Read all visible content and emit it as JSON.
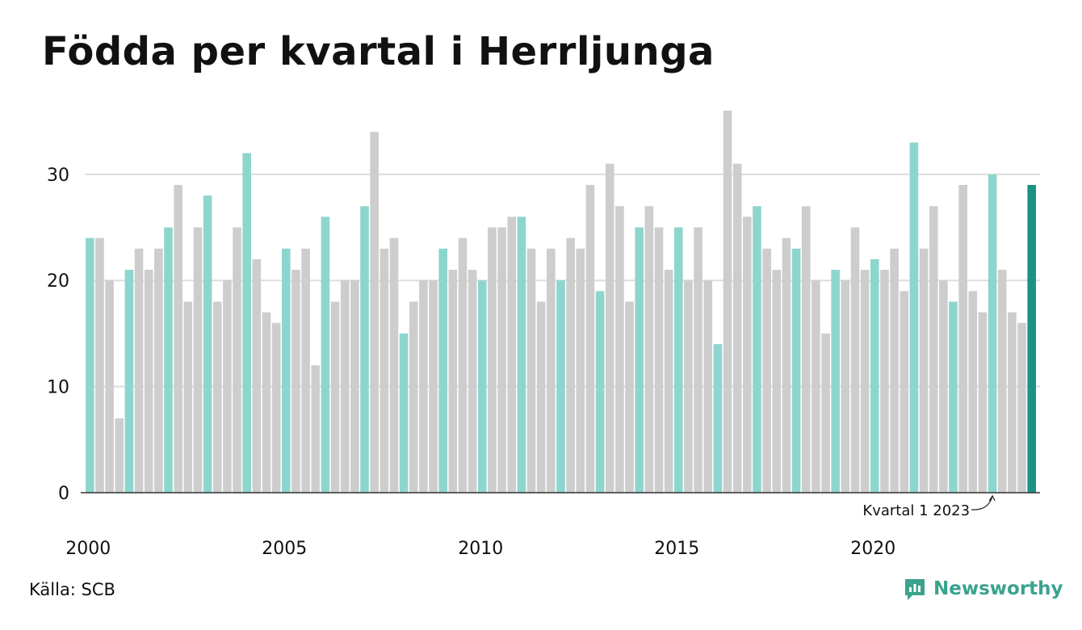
{
  "title": "Födda per kvartal i Herrljunga",
  "source": "Källa: SCB",
  "brand": "Newsworthy",
  "colors": {
    "q1": "#8dd6cd",
    "other": "#cdcdcd",
    "latest": "#1c9287",
    "grid": "#dddddd",
    "axis": "#333333",
    "brand": "#3aa28f"
  },
  "chart_data": {
    "type": "bar",
    "title": "Födda per kvartal i Herrljunga",
    "xlabel": "",
    "ylabel": "",
    "ylim": [
      0,
      36
    ],
    "yticks": [
      0,
      10,
      20,
      30
    ],
    "xticks": [
      "2000",
      "2005",
      "2010",
      "2015",
      "2020"
    ],
    "grid": true,
    "highlight_rule": "Kvartal 1 bars highlighted; latest bar emphasized",
    "annotation": {
      "text": "Kvartal 1 2023",
      "target": "2023 K1"
    },
    "categories": [
      "2000 K1",
      "2000 K2",
      "2000 K3",
      "2000 K4",
      "2001 K1",
      "2001 K2",
      "2001 K3",
      "2001 K4",
      "2002 K1",
      "2002 K2",
      "2002 K3",
      "2002 K4",
      "2003 K1",
      "2003 K2",
      "2003 K3",
      "2003 K4",
      "2004 K1",
      "2004 K2",
      "2004 K3",
      "2004 K4",
      "2005 K1",
      "2005 K2",
      "2005 K3",
      "2005 K4",
      "2006 K1",
      "2006 K2",
      "2006 K3",
      "2006 K4",
      "2007 K1",
      "2007 K2",
      "2007 K3",
      "2007 K4",
      "2008 K1",
      "2008 K2",
      "2008 K3",
      "2008 K4",
      "2009 K1",
      "2009 K2",
      "2009 K3",
      "2009 K4",
      "2010 K1",
      "2010 K2",
      "2010 K3",
      "2010 K4",
      "2011 K1",
      "2011 K2",
      "2011 K3",
      "2011 K4",
      "2012 K1",
      "2012 K2",
      "2012 K3",
      "2012 K4",
      "2013 K1",
      "2013 K2",
      "2013 K3",
      "2013 K4",
      "2014 K1",
      "2014 K2",
      "2014 K3",
      "2014 K4",
      "2015 K1",
      "2015 K2",
      "2015 K3",
      "2015 K4",
      "2016 K1",
      "2016 K2",
      "2016 K3",
      "2016 K4",
      "2017 K1",
      "2017 K2",
      "2017 K3",
      "2017 K4",
      "2018 K1",
      "2018 K2",
      "2018 K3",
      "2018 K4",
      "2019 K1",
      "2019 K2",
      "2019 K3",
      "2019 K4",
      "2020 K1",
      "2020 K2",
      "2020 K3",
      "2020 K4",
      "2021 K1",
      "2021 K2",
      "2021 K3",
      "2021 K4",
      "2022 K1",
      "2022 K2",
      "2022 K3",
      "2022 K4",
      "2023 K1",
      "2023 K2",
      "2023 K3",
      "2023 K4",
      "2024 K1"
    ],
    "values": [
      24,
      24,
      20,
      7,
      21,
      23,
      21,
      23,
      25,
      29,
      18,
      25,
      28,
      18,
      20,
      25,
      32,
      22,
      17,
      16,
      23,
      21,
      23,
      12,
      26,
      18,
      20,
      20,
      27,
      34,
      23,
      24,
      15,
      18,
      20,
      20,
      23,
      21,
      24,
      21,
      20,
      25,
      25,
      26,
      26,
      23,
      18,
      23,
      20,
      24,
      23,
      29,
      19,
      31,
      27,
      18,
      25,
      27,
      25,
      21,
      25,
      20,
      25,
      20,
      14,
      36,
      31,
      26,
      27,
      23,
      21,
      24,
      23,
      27,
      20,
      15,
      21,
      20,
      25,
      21,
      22,
      21,
      23,
      19,
      33,
      23,
      27,
      20,
      18,
      29,
      19,
      17,
      30,
      21,
      17,
      16,
      29
    ]
  }
}
